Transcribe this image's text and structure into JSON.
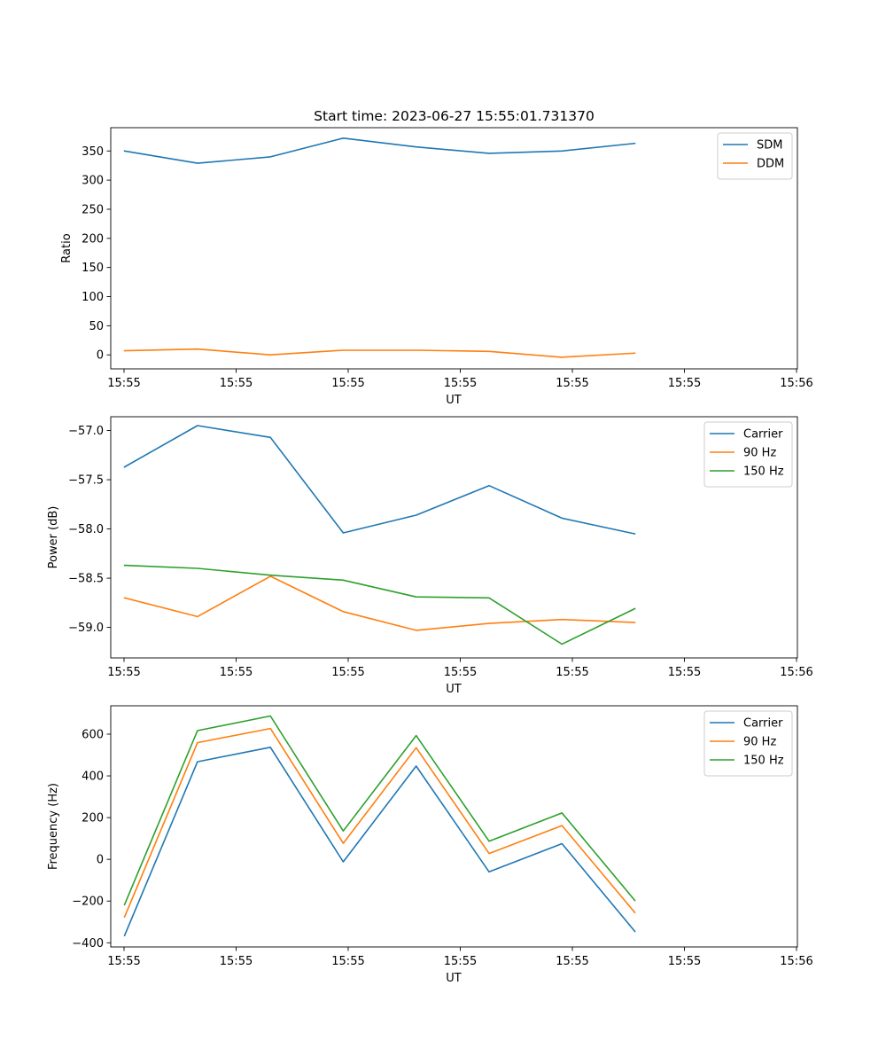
{
  "chart_data": [
    {
      "type": "line",
      "title": "Start time: 2023-06-27 15:55:01.731370",
      "xlabel": "UT",
      "ylabel": "Ratio",
      "x_tick_labels": [
        "15:55",
        "15:55",
        "15:55",
        "15:55",
        "15:55",
        "15:55",
        "15:56"
      ],
      "y_ticks": [
        0,
        50,
        100,
        150,
        200,
        250,
        300,
        350
      ],
      "ylim": [
        -24,
        390
      ],
      "xlim": [
        -0.19,
        9.23
      ],
      "legend": "top-right",
      "x": [
        0,
        1,
        2,
        3,
        4,
        5,
        6,
        7
      ],
      "series": [
        {
          "name": "SDM",
          "color": "#1f77b4",
          "values": [
            350,
            329,
            340,
            372,
            357,
            346,
            350,
            363
          ]
        },
        {
          "name": "DDM",
          "color": "#ff7f0e",
          "values": [
            7,
            10,
            0,
            8,
            8,
            6,
            -4,
            3
          ]
        }
      ]
    },
    {
      "type": "line",
      "title": "",
      "xlabel": "UT",
      "ylabel": "Power (dB)",
      "x_tick_labels": [
        "15:55",
        "15:55",
        "15:55",
        "15:55",
        "15:55",
        "15:55",
        "15:56"
      ],
      "y_ticks": [
        -57.0,
        -57.5,
        -58.0,
        -58.5,
        -59.0
      ],
      "y_tick_labels": [
        "−57.0",
        "−57.5",
        "−58.0",
        "−58.5",
        "−59.0"
      ],
      "ylim": [
        -59.31,
        -56.86
      ],
      "xlim": [
        -0.19,
        9.23
      ],
      "legend": "top-right",
      "x": [
        0,
        1,
        2,
        3,
        4,
        5,
        6,
        7
      ],
      "series": [
        {
          "name": "Carrier",
          "color": "#1f77b4",
          "values": [
            -57.37,
            -56.95,
            -57.07,
            -58.04,
            -57.86,
            -57.56,
            -57.89,
            -58.05
          ]
        },
        {
          "name": "90 Hz",
          "color": "#ff7f0e",
          "values": [
            -58.7,
            -58.89,
            -58.48,
            -58.84,
            -59.03,
            -58.96,
            -58.92,
            -58.95
          ]
        },
        {
          "name": "150 Hz",
          "color": "#2ca02c",
          "values": [
            -58.37,
            -58.4,
            -58.47,
            -58.52,
            -58.69,
            -58.7,
            -59.17,
            -58.81
          ]
        }
      ]
    },
    {
      "type": "line",
      "title": "",
      "xlabel": "UT",
      "ylabel": "Frequency (Hz)",
      "x_tick_labels": [
        "15:55",
        "15:55",
        "15:55",
        "15:55",
        "15:55",
        "15:55",
        "15:56"
      ],
      "y_ticks": [
        -400,
        -200,
        0,
        200,
        400,
        600
      ],
      "y_tick_labels": [
        "−400",
        "−200",
        "0",
        "200",
        "400",
        "600"
      ],
      "ylim": [
        -420,
        736
      ],
      "xlim": [
        -0.19,
        9.23
      ],
      "legend": "top-right",
      "x": [
        0,
        1,
        2,
        3,
        4,
        5,
        6,
        7
      ],
      "series": [
        {
          "name": "Carrier",
          "color": "#1f77b4",
          "values": [
            -365,
            468,
            537,
            -12,
            447,
            -60,
            75,
            -345
          ]
        },
        {
          "name": "90 Hz",
          "color": "#ff7f0e",
          "values": [
            -276,
            559,
            627,
            77,
            535,
            28,
            162,
            -255
          ]
        },
        {
          "name": "150 Hz",
          "color": "#2ca02c",
          "values": [
            -217,
            617,
            687,
            136,
            593,
            87,
            222,
            -197
          ]
        }
      ]
    }
  ]
}
